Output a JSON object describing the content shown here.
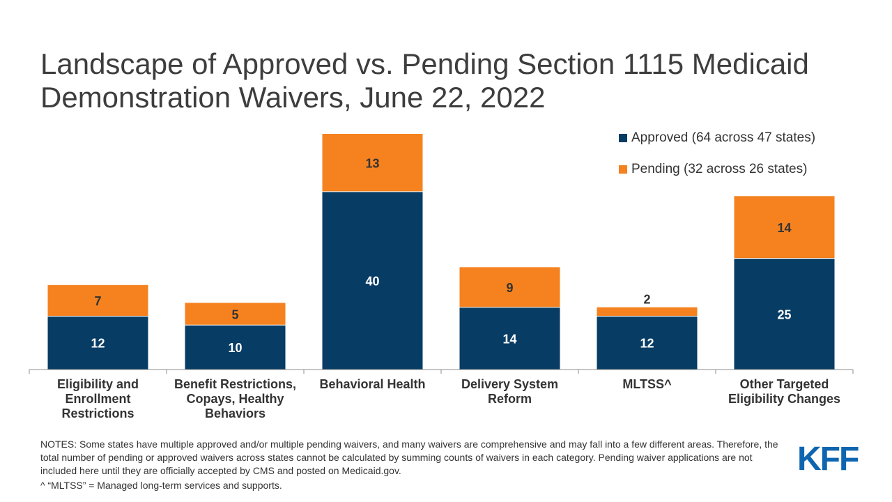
{
  "title": "Landscape of Approved vs. Pending Section 1115 Medicaid Demonstration Waivers, June 22, 2022",
  "colors": {
    "approved": "#073c64",
    "pending": "#f5821f",
    "logo": "#0e66b0"
  },
  "legend": {
    "approved": "Approved (64 across 47 states)",
    "pending": "Pending (32 across 26 states)"
  },
  "chart_data": {
    "type": "bar",
    "stacked": true,
    "categories": [
      "Eligibility and Enrollment Restrictions",
      "Benefit Restrictions, Copays, Healthy Behaviors",
      "Behavioral Health",
      "Delivery System Reform",
      "MLTSS^",
      "Other Targeted Eligibility Changes"
    ],
    "series": [
      {
        "name": "Approved (64 across 47 states)",
        "values": [
          12,
          10,
          40,
          14,
          12,
          25
        ]
      },
      {
        "name": "Pending (32 across 26 states)",
        "values": [
          7,
          5,
          13,
          9,
          2,
          14
        ]
      }
    ],
    "title": "Landscape of Approved vs. Pending Section 1115 Medicaid Demonstration Waivers, June 22, 2022",
    "xlabel": "",
    "ylabel": "",
    "ylim": [
      0,
      53
    ],
    "grid": false,
    "legend_position": "top-right"
  },
  "notes": {
    "note1": "NOTES: Some states have multiple approved and/or multiple pending waivers, and many waivers are comprehensive and may fall into a few different areas. Therefore, the total number of pending or approved waivers across states cannot be calculated by summing counts of waivers in each category. Pending waiver applications are not included here until they are officially accepted by CMS and posted on Medicaid.gov.",
    "note2": "^ “MLTSS” = Managed long-term services and supports."
  },
  "logo": {
    "text": "KFF"
  }
}
